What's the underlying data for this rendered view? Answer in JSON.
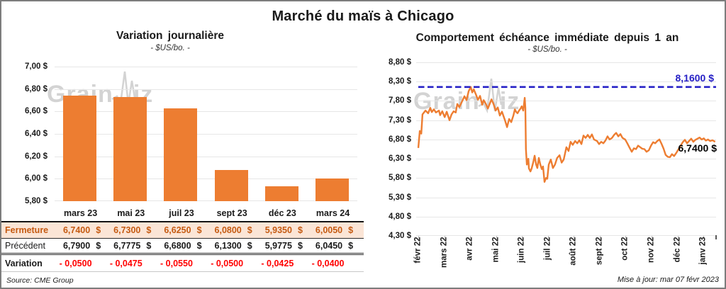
{
  "page": {
    "title": "Marché du maïs à Chicago"
  },
  "colors": {
    "series_orange": "#ED7D31",
    "reference_blue": "#2620C6",
    "negative_red": "#FF0000",
    "fermeture_text": "#C55A11",
    "fermeture_bg": "#FBE5D6",
    "gridline_gray": "#E6E6E6",
    "watermark_gray": "#C9C9C9"
  },
  "watermark": {
    "part1": "Grain",
    "part2": "iz"
  },
  "chart_data": [
    {
      "type": "bar",
      "title": "Variation journalière",
      "subtitle": "- $US/bo. -",
      "categories": [
        "mars 23",
        "mai 23",
        "juil 23",
        "sept 23",
        "déc 23",
        "mars 24"
      ],
      "values": [
        6.74,
        6.73,
        6.625,
        6.08,
        5.935,
        6.005
      ],
      "ylim": [
        5.8,
        7.0
      ],
      "y_tick_labels": [
        "7,00 $",
        "6,80 $",
        "6,60 $",
        "6,40 $",
        "6,20 $",
        "6,00 $",
        "5,80 $"
      ],
      "grid": true,
      "legend": "none"
    },
    {
      "type": "line",
      "title": "Comportement échéance immédiate depuis 1 an",
      "subtitle": "- $US/bo. -",
      "ylim": [
        4.3,
        8.8
      ],
      "y_tick_labels": [
        "8,80 $",
        "8,30 $",
        "7,80 $",
        "7,30 $",
        "6,80 $",
        "6,30 $",
        "5,80 $",
        "5,30 $",
        "4,80 $",
        "4,30 $"
      ],
      "x_tick_labels": [
        "févr 22",
        "mars 22",
        "avr 22",
        "mai 22",
        "juin 22",
        "juil 22",
        "août 22",
        "sept 22",
        "oct 22",
        "nov 22",
        "déc 22",
        "janv 23"
      ],
      "reference_line": {
        "value": 8.16,
        "label": "8,1600 $",
        "style": "dashed"
      },
      "last_value": 6.74,
      "last_label": "6,7400 $",
      "grid": true,
      "legend": "none",
      "points": [
        [
          0.007,
          6.58
        ],
        [
          0.012,
          7.02
        ],
        [
          0.017,
          6.95
        ],
        [
          0.021,
          7.45
        ],
        [
          0.031,
          7.55
        ],
        [
          0.04,
          7.48
        ],
        [
          0.047,
          7.62
        ],
        [
          0.052,
          7.51
        ],
        [
          0.059,
          7.58
        ],
        [
          0.066,
          7.5
        ],
        [
          0.076,
          7.55
        ],
        [
          0.08,
          7.43
        ],
        [
          0.087,
          7.53
        ],
        [
          0.095,
          7.38
        ],
        [
          0.102,
          7.52
        ],
        [
          0.111,
          7.3
        ],
        [
          0.118,
          7.45
        ],
        [
          0.125,
          7.53
        ],
        [
          0.132,
          7.5
        ],
        [
          0.137,
          7.72
        ],
        [
          0.144,
          7.64
        ],
        [
          0.154,
          7.8
        ],
        [
          0.161,
          7.92
        ],
        [
          0.168,
          7.82
        ],
        [
          0.175,
          8.05
        ],
        [
          0.182,
          8.16
        ],
        [
          0.187,
          8.02
        ],
        [
          0.192,
          8.1
        ],
        [
          0.199,
          7.97
        ],
        [
          0.206,
          7.83
        ],
        [
          0.213,
          7.93
        ],
        [
          0.22,
          7.7
        ],
        [
          0.225,
          7.82
        ],
        [
          0.232,
          7.73
        ],
        [
          0.239,
          7.6
        ],
        [
          0.244,
          7.7
        ],
        [
          0.251,
          7.84
        ],
        [
          0.258,
          7.72
        ],
        [
          0.265,
          7.55
        ],
        [
          0.272,
          7.63
        ],
        [
          0.279,
          7.42
        ],
        [
          0.286,
          7.52
        ],
        [
          0.296,
          7.3
        ],
        [
          0.303,
          7.12
        ],
        [
          0.31,
          7.33
        ],
        [
          0.317,
          7.25
        ],
        [
          0.324,
          7.42
        ],
        [
          0.329,
          7.58
        ],
        [
          0.333,
          7.52
        ],
        [
          0.338,
          7.48
        ],
        [
          0.343,
          7.55
        ],
        [
          0.348,
          7.6
        ],
        [
          0.352,
          7.66
        ],
        [
          0.357,
          7.55
        ],
        [
          0.362,
          7.88
        ],
        [
          0.364,
          7.62
        ],
        [
          0.366,
          6.55
        ],
        [
          0.369,
          6.15
        ],
        [
          0.374,
          6.3
        ],
        [
          0.376,
          6.05
        ],
        [
          0.381,
          5.97
        ],
        [
          0.385,
          6.05
        ],
        [
          0.39,
          6.2
        ],
        [
          0.395,
          6.38
        ],
        [
          0.4,
          6.15
        ],
        [
          0.404,
          6.06
        ],
        [
          0.409,
          6.32
        ],
        [
          0.414,
          6.15
        ],
        [
          0.419,
          6.03
        ],
        [
          0.423,
          6.1
        ],
        [
          0.428,
          5.7
        ],
        [
          0.433,
          5.8
        ],
        [
          0.437,
          5.78
        ],
        [
          0.442,
          6.15
        ],
        [
          0.449,
          6.28
        ],
        [
          0.456,
          6.06
        ],
        [
          0.463,
          6.15
        ],
        [
          0.47,
          6.32
        ],
        [
          0.478,
          6.39
        ],
        [
          0.485,
          6.2
        ],
        [
          0.492,
          6.28
        ],
        [
          0.501,
          6.6
        ],
        [
          0.508,
          6.5
        ],
        [
          0.515,
          6.74
        ],
        [
          0.522,
          6.66
        ],
        [
          0.53,
          6.76
        ],
        [
          0.537,
          6.7
        ],
        [
          0.544,
          6.78
        ],
        [
          0.551,
          6.68
        ],
        [
          0.558,
          6.9
        ],
        [
          0.565,
          6.84
        ],
        [
          0.572,
          6.92
        ],
        [
          0.579,
          6.84
        ],
        [
          0.586,
          6.93
        ],
        [
          0.593,
          6.8
        ],
        [
          0.603,
          6.76
        ],
        [
          0.61,
          6.68
        ],
        [
          0.617,
          6.74
        ],
        [
          0.624,
          6.7
        ],
        [
          0.631,
          6.77
        ],
        [
          0.638,
          6.88
        ],
        [
          0.645,
          6.8
        ],
        [
          0.653,
          6.84
        ],
        [
          0.66,
          6.92
        ],
        [
          0.667,
          6.97
        ],
        [
          0.674,
          6.88
        ],
        [
          0.681,
          6.94
        ],
        [
          0.688,
          6.84
        ],
        [
          0.697,
          6.8
        ],
        [
          0.704,
          6.7
        ],
        [
          0.712,
          6.58
        ],
        [
          0.719,
          6.48
        ],
        [
          0.726,
          6.57
        ],
        [
          0.733,
          6.55
        ],
        [
          0.74,
          6.64
        ],
        [
          0.747,
          6.6
        ],
        [
          0.754,
          6.56
        ],
        [
          0.761,
          6.55
        ],
        [
          0.768,
          6.48
        ],
        [
          0.776,
          6.52
        ],
        [
          0.783,
          6.64
        ],
        [
          0.79,
          6.73
        ],
        [
          0.797,
          6.7
        ],
        [
          0.804,
          6.76
        ],
        [
          0.811,
          6.8
        ],
        [
          0.818,
          6.69
        ],
        [
          0.825,
          6.56
        ],
        [
          0.832,
          6.4
        ],
        [
          0.839,
          6.35
        ],
        [
          0.846,
          6.34
        ],
        [
          0.853,
          6.42
        ],
        [
          0.86,
          6.37
        ],
        [
          0.868,
          6.46
        ],
        [
          0.875,
          6.55
        ],
        [
          0.882,
          6.64
        ],
        [
          0.889,
          6.73
        ],
        [
          0.896,
          6.79
        ],
        [
          0.903,
          6.7
        ],
        [
          0.91,
          6.76
        ],
        [
          0.917,
          6.82
        ],
        [
          0.924,
          6.74
        ],
        [
          0.931,
          6.79
        ],
        [
          0.938,
          6.82
        ],
        [
          0.945,
          6.85
        ],
        [
          0.952,
          6.8
        ],
        [
          0.959,
          6.83
        ],
        [
          0.966,
          6.77
        ],
        [
          0.973,
          6.8
        ],
        [
          0.98,
          6.76
        ],
        [
          0.988,
          6.78
        ],
        [
          0.997,
          6.74
        ]
      ]
    }
  ],
  "table": {
    "rows": [
      {
        "label": "Fermeture",
        "style": "fermeture",
        "currency": "$",
        "values": [
          "6,7400",
          "6,7300",
          "6,6250",
          "6,0800",
          "5,9350",
          "6,0050"
        ]
      },
      {
        "label": "Précédent",
        "style": "precedent",
        "currency": "$",
        "values": [
          "6,7900",
          "6,7775",
          "6,6800",
          "6,1300",
          "5,9775",
          "6,0450"
        ]
      },
      {
        "label": "Variation",
        "style": "variation",
        "currency": "",
        "values": [
          "- 0,0500",
          "- 0,0475",
          "- 0,0550",
          "- 0,0500",
          "- 0,0425",
          "- 0,0400"
        ]
      }
    ]
  },
  "footer": {
    "source": "Source: CME Group",
    "update_note": "Mise à jour: mar 07 févr 2023"
  }
}
